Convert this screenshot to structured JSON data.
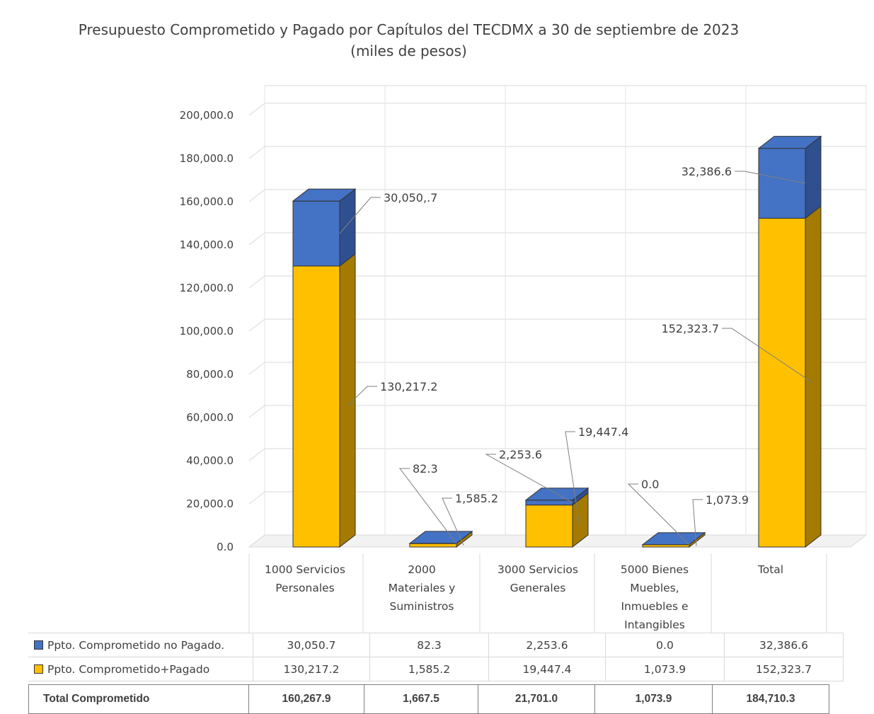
{
  "chart_data": {
    "type": "bar",
    "stacked": true,
    "three_d": true,
    "title": "Presupuesto Comprometido y Pagado por Capítulos del TECDMX a 30 de septiembre de 2023",
    "subtitle": "(miles de pesos)",
    "categories": [
      [
        "1000 Servicios",
        "Personales"
      ],
      [
        "2000",
        "Materiales y",
        "Suministros"
      ],
      [
        "3000 Servicios",
        "Generales"
      ],
      [
        "5000 Bienes",
        "Muebles,",
        "Inmuebles e",
        "Intangibles"
      ],
      [
        "Total"
      ]
    ],
    "ylim": [
      0,
      200000
    ],
    "yticks": [
      "0.0",
      "20,000.0",
      "40,000.0",
      "60,000.0",
      "80,000.0",
      "100,000.0",
      "120,000.0",
      "140,000.0",
      "160,000.0",
      "180,000.0",
      "200,000.0"
    ],
    "grid": true,
    "legend": "data table",
    "series": [
      {
        "name": "Ppto. Comprometido+Pagado",
        "color": "#ffc000",
        "side_color": "#a47a00",
        "values": [
          130217.2,
          1585.2,
          19447.4,
          1073.9,
          152323.7
        ],
        "labels": [
          "130,217.2",
          "1,585.2",
          "19,447.4",
          "1,073.9",
          "152,323.7"
        ]
      },
      {
        "name": "Ppto. Comprometido no Pagado.",
        "color": "#4472c4",
        "side_color": "#2f4f8f",
        "values": [
          30050.7,
          82.3,
          2253.6,
          0.0,
          32386.6
        ],
        "labels": [
          "30,050,.7",
          "82.3",
          "2,253.6",
          "0.0",
          "32,386.6"
        ]
      }
    ],
    "table": {
      "rows": [
        {
          "label": "Ppto. Comprometido no Pagado.",
          "key_color": "#4472c4",
          "values": [
            "30,050.7",
            "82.3",
            "2,253.6",
            "0.0",
            "32,386.6"
          ]
        },
        {
          "label": "Ppto. Comprometido+Pagado",
          "key_color": "#ffc000",
          "values": [
            "130,217.2",
            "1,585.2",
            "19,447.4",
            "1,073.9",
            "152,323.7"
          ]
        }
      ],
      "total": {
        "label": "Total Comprometido",
        "values": [
          "160,267.9",
          "1,667.5",
          "21,701.0",
          "1,073.9",
          "184,710.3"
        ]
      }
    }
  }
}
